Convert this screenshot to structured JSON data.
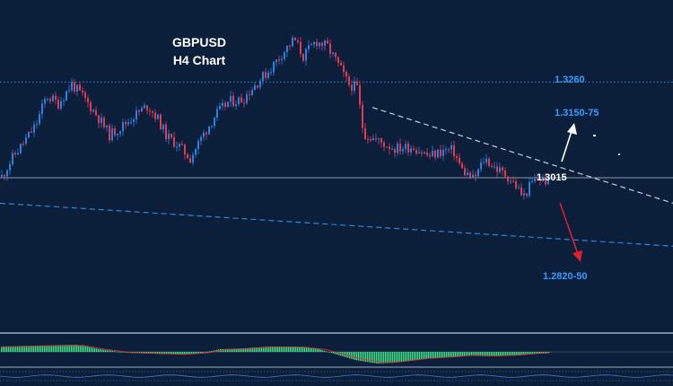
{
  "chart_data": {
    "type": "candlestick",
    "title_line1": "GBPUSD",
    "title_line2": "H4 Chart",
    "ylim": [
      1.262,
      1.347
    ],
    "colors": {
      "background": "#0b1f3a",
      "bull_candle": "#2f7fe0",
      "bear_candle": "#e23a4e",
      "level_dotted": "#2f86d6",
      "trend_white": "#c8ccd6",
      "trend_blue": "#2f86d6",
      "arrow_up": "#ffffff",
      "arrow_down": "#e11d2e",
      "osc_hist": "#3ddc84",
      "label_blue": "#3b9bff",
      "label_white": "#ffffff"
    },
    "levels": [
      {
        "label": "1.3260",
        "value": 1.326,
        "style": "dotted-blue"
      },
      {
        "label": "1.3015",
        "value": 1.3015,
        "style": "solid-gray"
      }
    ],
    "target_labels": {
      "up": "1.3150-75",
      "current": "1.3015",
      "down": "1.2820-50"
    },
    "close_path": [
      [
        0,
        1.301
      ],
      [
        15,
        1.307
      ],
      [
        28,
        1.311
      ],
      [
        40,
        1.315
      ],
      [
        52,
        1.3225
      ],
      [
        65,
        1.3205
      ],
      [
        80,
        1.3255
      ],
      [
        95,
        1.3215
      ],
      [
        108,
        1.3175
      ],
      [
        122,
        1.3125
      ],
      [
        135,
        1.3145
      ],
      [
        150,
        1.3175
      ],
      [
        165,
        1.32
      ],
      [
        176,
        1.3165
      ],
      [
        186,
        1.312
      ],
      [
        198,
        1.31
      ],
      [
        212,
        1.3065
      ],
      [
        225,
        1.312
      ],
      [
        240,
        1.3175
      ],
      [
        255,
        1.321
      ],
      [
        270,
        1.3215
      ],
      [
        285,
        1.3255
      ],
      [
        300,
        1.329
      ],
      [
        315,
        1.3335
      ],
      [
        328,
        1.337
      ],
      [
        338,
        1.3325
      ],
      [
        352,
        1.3365
      ],
      [
        365,
        1.335
      ],
      [
        378,
        1.33
      ],
      [
        388,
        1.3255
      ],
      [
        398,
        1.3245
      ],
      [
        405,
        1.313
      ],
      [
        420,
        1.311
      ],
      [
        440,
        1.309
      ],
      [
        460,
        1.3095
      ],
      [
        478,
        1.307
      ],
      [
        495,
        1.3085
      ],
      [
        505,
        1.3085
      ],
      [
        515,
        1.3035
      ],
      [
        528,
        1.301
      ],
      [
        540,
        1.3065
      ],
      [
        552,
        1.304
      ],
      [
        565,
        1.302
      ],
      [
        575,
        1.2995
      ],
      [
        583,
        1.2965
      ],
      [
        592,
        1.3
      ],
      [
        600,
        1.3015
      ],
      [
        612,
        1.3005
      ]
    ],
    "trendlines": [
      {
        "style": "white-dashed",
        "start": [
          415,
          1.3195
        ],
        "end": [
          750,
          1.295
        ]
      },
      {
        "style": "blue-dashed",
        "start": [
          0,
          1.295
        ],
        "end": [
          750,
          1.284
        ]
      }
    ],
    "oscillator": "histogram",
    "grid": false,
    "legend": "none"
  }
}
